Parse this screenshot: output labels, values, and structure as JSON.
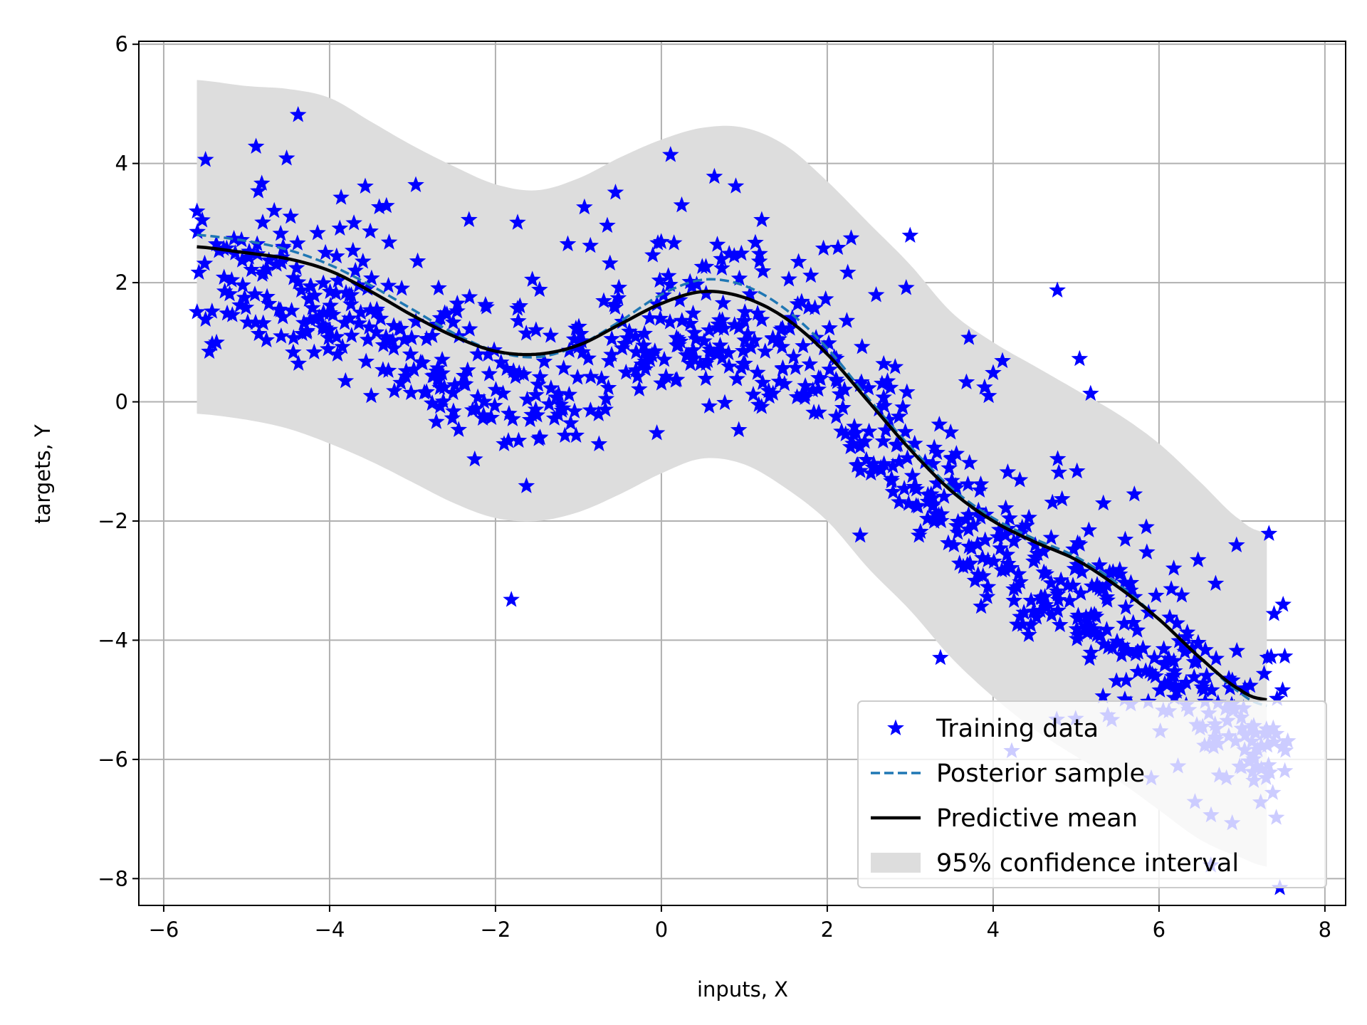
{
  "chart_data": {
    "type": "scatter",
    "title": "",
    "xlabel": "inputs, X",
    "ylabel": "targets, Y",
    "xlim": [
      -6.3,
      8.25
    ],
    "ylim": [
      -8.45,
      6.05
    ],
    "xticks": [
      -6,
      -4,
      -2,
      0,
      2,
      4,
      6,
      8
    ],
    "yticks": [
      -8,
      -6,
      -4,
      -2,
      0,
      2,
      4,
      6
    ],
    "xtick_labels": [
      "−6",
      "−4",
      "−2",
      "0",
      "2",
      "4",
      "6",
      "8"
    ],
    "ytick_labels": [
      "−8",
      "−6",
      "−4",
      "−2",
      "0",
      "2",
      "4",
      "6"
    ],
    "grid": true,
    "legend_position": "lower-right",
    "colors": {
      "scatter": "#0000ff",
      "posterior": "#1f77b4",
      "mean": "#000000",
      "band": "#dddddd",
      "grid": "#b0b0b0"
    },
    "series": [
      {
        "name": "Training data",
        "kind": "scatter-star"
      },
      {
        "name": "Posterior sample",
        "kind": "dashed-line",
        "x": [
          -5.6,
          -5.0,
          -4.5,
          -4.0,
          -3.5,
          -3.0,
          -2.5,
          -2.0,
          -1.5,
          -1.0,
          -0.5,
          0.0,
          0.5,
          1.0,
          1.5,
          2.0,
          2.5,
          3.0,
          3.5,
          4.0,
          4.5,
          5.0,
          5.5,
          6.0,
          6.5,
          7.0,
          7.3
        ],
        "y": [
          2.8,
          2.7,
          2.55,
          2.3,
          1.95,
          1.55,
          1.15,
          0.85,
          0.75,
          0.95,
          1.35,
          1.8,
          2.05,
          1.95,
          1.55,
          0.9,
          0.05,
          -0.75,
          -1.45,
          -1.95,
          -2.3,
          -2.6,
          -3.05,
          -3.65,
          -4.3,
          -4.9,
          -5.1
        ]
      },
      {
        "name": "Predictive mean",
        "kind": "solid-line",
        "x": [
          -5.6,
          -5.0,
          -4.5,
          -4.0,
          -3.5,
          -3.0,
          -2.5,
          -2.0,
          -1.5,
          -1.0,
          -0.5,
          0.0,
          0.5,
          1.0,
          1.5,
          2.0,
          2.5,
          3.0,
          3.5,
          4.0,
          4.5,
          5.0,
          5.5,
          6.0,
          6.5,
          7.0,
          7.3
        ],
        "y": [
          2.6,
          2.5,
          2.4,
          2.2,
          1.85,
          1.45,
          1.1,
          0.85,
          0.8,
          0.95,
          1.3,
          1.65,
          1.85,
          1.75,
          1.4,
          0.8,
          0.0,
          -0.8,
          -1.5,
          -2.0,
          -2.35,
          -2.65,
          -3.1,
          -3.65,
          -4.3,
          -4.85,
          -5.0
        ]
      },
      {
        "name": "95% confidence interval",
        "kind": "band",
        "x": [
          -5.6,
          -5.0,
          -4.5,
          -4.0,
          -3.5,
          -3.0,
          -2.5,
          -2.0,
          -1.5,
          -1.0,
          -0.5,
          0.0,
          0.5,
          1.0,
          1.5,
          2.0,
          2.5,
          3.0,
          3.5,
          4.0,
          4.5,
          5.0,
          5.5,
          6.0,
          6.5,
          7.0,
          7.3
        ],
        "upper": [
          5.4,
          5.3,
          5.25,
          5.1,
          4.7,
          4.3,
          3.95,
          3.65,
          3.55,
          3.75,
          4.1,
          4.4,
          4.6,
          4.6,
          4.3,
          3.7,
          3.0,
          2.3,
          1.5,
          1.0,
          0.6,
          0.2,
          -0.2,
          -0.7,
          -1.35,
          -2.0,
          -2.2
        ],
        "lower": [
          -0.2,
          -0.3,
          -0.45,
          -0.7,
          -1.0,
          -1.35,
          -1.7,
          -1.95,
          -2.0,
          -1.85,
          -1.55,
          -1.2,
          -0.95,
          -1.05,
          -1.45,
          -2.0,
          -2.8,
          -3.5,
          -4.3,
          -4.95,
          -5.5,
          -5.95,
          -6.35,
          -6.85,
          -7.35,
          -7.65,
          -7.8
        ]
      }
    ],
    "scatter_generation": {
      "n": 900,
      "x_min": -5.6,
      "x_max": 7.6,
      "seed": 7
    }
  }
}
